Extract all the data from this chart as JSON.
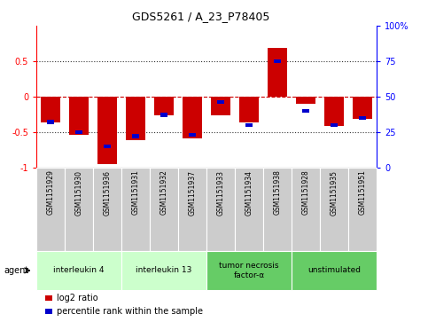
{
  "title": "GDS5261 / A_23_P78405",
  "samples": [
    "GSM1151929",
    "GSM1151930",
    "GSM1151936",
    "GSM1151931",
    "GSM1151932",
    "GSM1151937",
    "GSM1151933",
    "GSM1151934",
    "GSM1151938",
    "GSM1151928",
    "GSM1151935",
    "GSM1151951"
  ],
  "log2_ratio": [
    -0.37,
    -0.54,
    -0.95,
    -0.62,
    -0.27,
    -0.59,
    -0.27,
    -0.37,
    0.69,
    -0.1,
    -0.41,
    -0.31
  ],
  "percentile_rank": [
    32,
    25,
    15,
    22,
    37,
    23,
    46,
    30,
    75,
    40,
    30,
    35
  ],
  "agents": [
    {
      "label": "interleukin 4",
      "start": 0,
      "end": 3,
      "color": "#ccffcc"
    },
    {
      "label": "interleukin 13",
      "start": 3,
      "end": 6,
      "color": "#ccffcc"
    },
    {
      "label": "tumor necrosis\nfactor-α",
      "start": 6,
      "end": 9,
      "color": "#66cc66"
    },
    {
      "label": "unstimulated",
      "start": 9,
      "end": 12,
      "color": "#66cc66"
    }
  ],
  "ylim": [
    -1.0,
    1.0
  ],
  "yticks_left": [
    -1,
    -0.5,
    0,
    0.5
  ],
  "yticks_left_labels": [
    "-1",
    "-0.5",
    "0",
    "0.5"
  ],
  "yticks_right": [
    0,
    25,
    50,
    75,
    100
  ],
  "yticks_right_labels": [
    "0",
    "25",
    "50",
    "75",
    "100%"
  ],
  "bar_color": "#cc0000",
  "blue_color": "#0000cc",
  "hline_color": "#cc0000",
  "dotted_color": "#333333",
  "bg_color": "#ffffff",
  "plot_bg": "#ffffff",
  "sample_box_color": "#cccccc",
  "agent_label": "agent",
  "legend_log2": "log2 ratio",
  "legend_pct": "percentile rank within the sample",
  "bar_width": 0.7
}
